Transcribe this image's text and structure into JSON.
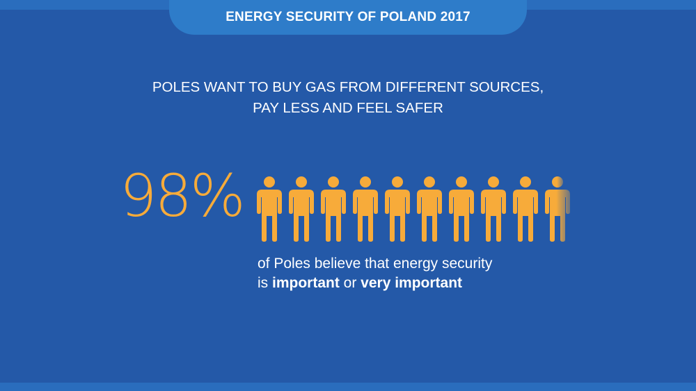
{
  "header": {
    "title": "ENERGY SECURITY OF POLAND 2017"
  },
  "subtitle": {
    "line1": "POLES WANT TO BUY GAS FROM DIFFERENT SOURCES,",
    "line2": "PAY LESS AND FEEL SAFER"
  },
  "stat": {
    "value_text": "98%",
    "value": 98,
    "icon_name": "person-icon",
    "icon_count": 10
  },
  "caption": {
    "line1": "of Poles believe that energy security",
    "line2_prefix": "is ",
    "line2_bold1": "important",
    "line2_mid": " or ",
    "line2_bold2": "very important"
  },
  "colors": {
    "background": "#2459a8",
    "header_tab": "#2e7cc9",
    "accent": "#f7ab3a",
    "text": "#ffffff"
  }
}
